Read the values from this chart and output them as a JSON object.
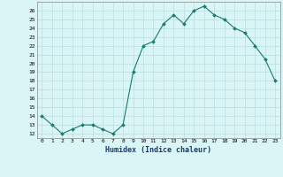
{
  "x": [
    0,
    1,
    2,
    3,
    4,
    5,
    6,
    7,
    8,
    9,
    10,
    11,
    12,
    13,
    14,
    15,
    16,
    17,
    18,
    19,
    20,
    21,
    22,
    23
  ],
  "y": [
    14,
    13,
    12,
    12.5,
    13,
    13,
    12.5,
    12,
    13,
    19,
    22,
    22.5,
    24.5,
    25.5,
    24.5,
    26,
    26.5,
    25.5,
    25,
    24,
    23.5,
    22,
    20.5,
    18
  ],
  "xlabel": "Humidex (Indice chaleur)",
  "line_color": "#1a7a6e",
  "bg_color": "#d9f5f5",
  "grid_color": "#b8dede",
  "ylim": [
    11.5,
    27
  ],
  "xlim": [
    -0.5,
    23.5
  ],
  "yticks": [
    12,
    13,
    14,
    15,
    16,
    17,
    18,
    19,
    20,
    21,
    22,
    23,
    24,
    25,
    26
  ],
  "xtick_labels": [
    "0",
    "1",
    "2",
    "3",
    "4",
    "5",
    "6",
    "7",
    "8",
    "9",
    "10",
    "11",
    "12",
    "13",
    "14",
    "15",
    "16",
    "17",
    "18",
    "19",
    "20",
    "21",
    "22",
    "23"
  ]
}
